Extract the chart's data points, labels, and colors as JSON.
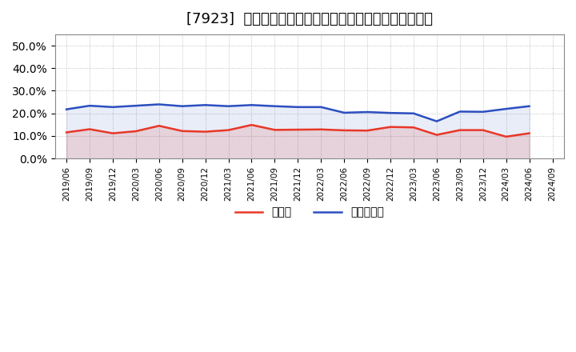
{
  "title": "[7923]  現預金、有利子負債の総資産に対する比率の推移",
  "x_labels": [
    "2019/06",
    "2019/09",
    "2019/12",
    "2020/03",
    "2020/06",
    "2020/09",
    "2020/12",
    "2021/03",
    "2021/06",
    "2021/09",
    "2021/12",
    "2022/03",
    "2022/06",
    "2022/09",
    "2022/12",
    "2023/03",
    "2023/06",
    "2023/09",
    "2023/12",
    "2024/03",
    "2024/06",
    "2024/09"
  ],
  "cash": [
    0.116,
    0.13,
    0.112,
    0.121,
    0.145,
    0.122,
    0.119,
    0.126,
    0.149,
    0.127,
    0.128,
    0.129,
    0.125,
    0.124,
    0.14,
    0.138,
    0.105,
    0.126,
    0.126,
    0.097,
    0.112,
    null
  ],
  "debt": [
    0.218,
    0.234,
    0.228,
    0.234,
    0.24,
    0.232,
    0.237,
    0.232,
    0.237,
    0.232,
    0.228,
    0.228,
    0.203,
    0.206,
    0.202,
    0.2,
    0.165,
    0.208,
    0.207,
    0.22,
    0.232,
    null
  ],
  "cash_color": "#e83828",
  "debt_color": "#2c4fc0",
  "background_color": "#ffffff",
  "grid_color": "#aaaaaa",
  "ylim": [
    0.0,
    0.55
  ],
  "yticks": [
    0.0,
    0.1,
    0.2,
    0.3,
    0.4,
    0.5
  ],
  "legend_cash": "現預金",
  "legend_debt": "有利子負債",
  "title_fontsize": 13,
  "line_width": 1.8
}
